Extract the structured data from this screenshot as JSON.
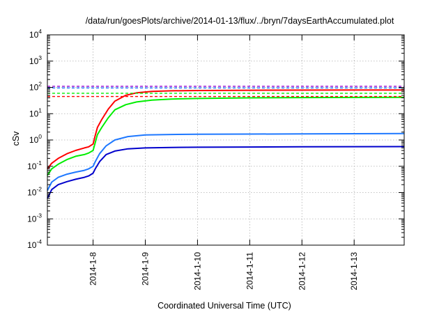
{
  "chart_data": {
    "type": "line",
    "title": "/data/run/goesPlots/archive/2014-01-13/flux/../bryn/7daysEarthAccumulated.plot",
    "xlabel": "Coordinated Universal Time (UTC)",
    "ylabel": "cSv",
    "y_scale": "log",
    "ylim": [
      0.0001,
      10000
    ],
    "y_ticks": [
      {
        "base": "10",
        "exp": "-4",
        "value": 0.0001
      },
      {
        "base": "10",
        "exp": "-3",
        "value": 0.001
      },
      {
        "base": "10",
        "exp": "-2",
        "value": 0.01
      },
      {
        "base": "10",
        "exp": "-1",
        "value": 0.1
      },
      {
        "base": "10",
        "exp": "0",
        "value": 1
      },
      {
        "base": "10",
        "exp": "1",
        "value": 10
      },
      {
        "base": "10",
        "exp": "2",
        "value": 100
      },
      {
        "base": "10",
        "exp": "3",
        "value": 1000
      },
      {
        "base": "10",
        "exp": "4",
        "value": 10000
      }
    ],
    "xlim": [
      "2014-01-07T03:00",
      "2014-01-13T23:00"
    ],
    "x_ticks": [
      "2014-1-8",
      "2014-1-9",
      "2014-1-10",
      "2014-1-11",
      "2014-1-12",
      "2014-1-13"
    ],
    "grid": true,
    "legend": "none",
    "series": [
      {
        "color": "#ff0000",
        "style": "solid",
        "points": [
          [
            "2014-01-07T03:00",
            0.08
          ],
          [
            "2014-01-07T05:00",
            0.13
          ],
          [
            "2014-01-07T08:00",
            0.2
          ],
          [
            "2014-01-07T12:00",
            0.3
          ],
          [
            "2014-01-07T16:00",
            0.4
          ],
          [
            "2014-01-07T20:00",
            0.5
          ],
          [
            "2014-01-07T22:00",
            0.55
          ],
          [
            "2014-01-08T00:00",
            0.7
          ],
          [
            "2014-01-08T01:00",
            1.5
          ],
          [
            "2014-01-08T02:00",
            3.0
          ],
          [
            "2014-01-08T04:00",
            6.0
          ],
          [
            "2014-01-08T07:00",
            15.0
          ],
          [
            "2014-01-08T10:00",
            30.0
          ],
          [
            "2014-01-08T15:00",
            50.0
          ],
          [
            "2014-01-08T20:00",
            62.0
          ],
          [
            "2014-01-09T03:00",
            70.0
          ],
          [
            "2014-01-09T12:00",
            74.0
          ],
          [
            "2014-01-10T00:00",
            76.0
          ],
          [
            "2014-01-11T00:00",
            78.0
          ],
          [
            "2014-01-12T00:00",
            79.0
          ],
          [
            "2014-01-13T23:00",
            80.0
          ]
        ]
      },
      {
        "color": "#00ee00",
        "style": "solid",
        "points": [
          [
            "2014-01-07T03:00",
            0.045
          ],
          [
            "2014-01-07T05:00",
            0.08
          ],
          [
            "2014-01-07T08:00",
            0.12
          ],
          [
            "2014-01-07T12:00",
            0.18
          ],
          [
            "2014-01-07T16:00",
            0.24
          ],
          [
            "2014-01-07T20:00",
            0.28
          ],
          [
            "2014-01-07T22:00",
            0.32
          ],
          [
            "2014-01-08T00:00",
            0.4
          ],
          [
            "2014-01-08T01:00",
            0.8
          ],
          [
            "2014-01-08T02:00",
            1.6
          ],
          [
            "2014-01-08T04:00",
            3.0
          ],
          [
            "2014-01-08T07:00",
            7.0
          ],
          [
            "2014-01-08T10:00",
            14.0
          ],
          [
            "2014-01-08T15:00",
            22.0
          ],
          [
            "2014-01-08T20:00",
            28.0
          ],
          [
            "2014-01-09T03:00",
            33.0
          ],
          [
            "2014-01-09T12:00",
            36.0
          ],
          [
            "2014-01-10T00:00",
            38.0
          ],
          [
            "2014-01-11T00:00",
            40.0
          ],
          [
            "2014-01-12T00:00",
            41.0
          ],
          [
            "2014-01-13T23:00",
            42.0
          ]
        ]
      },
      {
        "color": "#1e78ff",
        "style": "solid",
        "points": [
          [
            "2014-01-07T03:00",
            0.012
          ],
          [
            "2014-01-07T05:00",
            0.025
          ],
          [
            "2014-01-07T08:00",
            0.038
          ],
          [
            "2014-01-07T12:00",
            0.05
          ],
          [
            "2014-01-07T16:00",
            0.06
          ],
          [
            "2014-01-07T20:00",
            0.07
          ],
          [
            "2014-01-07T22:00",
            0.08
          ],
          [
            "2014-01-08T00:00",
            0.1
          ],
          [
            "2014-01-08T01:00",
            0.15
          ],
          [
            "2014-01-08T03:00",
            0.3
          ],
          [
            "2014-01-08T06:00",
            0.6
          ],
          [
            "2014-01-08T10:00",
            1.0
          ],
          [
            "2014-01-08T16:00",
            1.35
          ],
          [
            "2014-01-09T00:00",
            1.55
          ],
          [
            "2014-01-09T12:00",
            1.62
          ],
          [
            "2014-01-10T00:00",
            1.65
          ],
          [
            "2014-01-11T00:00",
            1.68
          ],
          [
            "2014-01-12T00:00",
            1.7
          ],
          [
            "2014-01-13T23:00",
            1.75
          ]
        ]
      },
      {
        "color": "#0000cc",
        "style": "solid",
        "points": [
          [
            "2014-01-07T03:00",
            0.006
          ],
          [
            "2014-01-07T05:00",
            0.013
          ],
          [
            "2014-01-07T08:00",
            0.02
          ],
          [
            "2014-01-07T12:00",
            0.026
          ],
          [
            "2014-01-07T16:00",
            0.032
          ],
          [
            "2014-01-07T20:00",
            0.038
          ],
          [
            "2014-01-07T22:00",
            0.043
          ],
          [
            "2014-01-08T00:00",
            0.055
          ],
          [
            "2014-01-08T01:00",
            0.08
          ],
          [
            "2014-01-08T03:00",
            0.15
          ],
          [
            "2014-01-08T06:00",
            0.28
          ],
          [
            "2014-01-08T10:00",
            0.38
          ],
          [
            "2014-01-08T16:00",
            0.46
          ],
          [
            "2014-01-09T00:00",
            0.5
          ],
          [
            "2014-01-09T12:00",
            0.52
          ],
          [
            "2014-01-10T00:00",
            0.53
          ],
          [
            "2014-01-11T00:00",
            0.54
          ],
          [
            "2014-01-12T00:00",
            0.55
          ],
          [
            "2014-01-13T23:00",
            0.56
          ]
        ]
      },
      {
        "color": "#9400d3",
        "style": "dashed",
        "points": [
          [
            "2014-01-07T03:00",
            110
          ],
          [
            "2014-01-13T23:00",
            110
          ]
        ]
      },
      {
        "color": "#1e78ff",
        "style": "dashed",
        "points": [
          [
            "2014-01-07T03:00",
            95
          ],
          [
            "2014-01-13T23:00",
            95
          ]
        ]
      },
      {
        "color": "#00ee00",
        "style": "dashed",
        "points": [
          [
            "2014-01-07T03:00",
            60
          ],
          [
            "2014-01-13T23:00",
            60
          ]
        ]
      },
      {
        "color": "#ff0000",
        "style": "dashed",
        "points": [
          [
            "2014-01-07T03:00",
            45
          ],
          [
            "2014-01-13T23:00",
            45
          ]
        ]
      }
    ]
  }
}
